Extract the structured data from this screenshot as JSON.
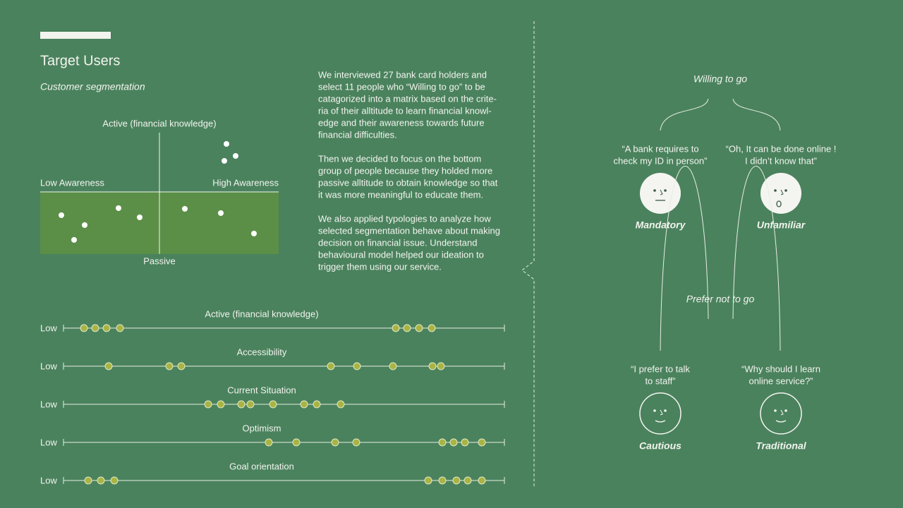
{
  "left": {
    "title": "Target Users",
    "subtitle": "Customer segmentation",
    "matrix": {
      "top": "Active (financial knowledge)",
      "bottom": "Passive",
      "left": "Low Awareness",
      "right": "High Awareness"
    },
    "paragraphs": [
      [
        "We interviewed 27 bank card holders and",
        "select 11 people who “Willing to go” to be",
        "catagorized into a matrix based on the crite-",
        "ria of their alltitude to learn financial knowl-",
        "edge and their awareness towards future",
        "financial difficulties."
      ],
      [
        "Then we decided to focus on the bottom",
        "group of people because they holded more",
        "passive alltitude to obtain knowledge so that",
        "it was more meaningful to educate them."
      ],
      [
        "We also applied typologies to analyze how",
        "selected segmentation behave about making",
        "decision on financial issue.  Understand",
        "behavioural model helped our ideation to",
        "trigger them using our service."
      ]
    ]
  },
  "scales": [
    {
      "label": "Active (financial knowledge)",
      "low": "Low"
    },
    {
      "label": "Accessibility",
      "low": "Low"
    },
    {
      "label": "Current Situation",
      "low": "Low"
    },
    {
      "label": "Optimism",
      "low": "Low"
    },
    {
      "label": "Goal orientation",
      "low": "Low"
    }
  ],
  "right": {
    "groups": [
      {
        "title": "Willing to go",
        "personas": [
          {
            "quote": [
              "“A bank requires to",
              "check my ID in person”"
            ],
            "name": "Mandatory"
          },
          {
            "quote": [
              "“Oh, It can be done online !",
              "I didn’t know that”"
            ],
            "name": "Unfamiliar"
          }
        ]
      },
      {
        "title": "Prefer not to go",
        "personas": [
          {
            "quote": [
              "“I prefer to talk",
              "to staff”"
            ],
            "name": "Cautious"
          },
          {
            "quote": [
              "“Why should I learn",
              "online service?”"
            ],
            "name": "Traditional"
          }
        ]
      }
    ]
  }
}
